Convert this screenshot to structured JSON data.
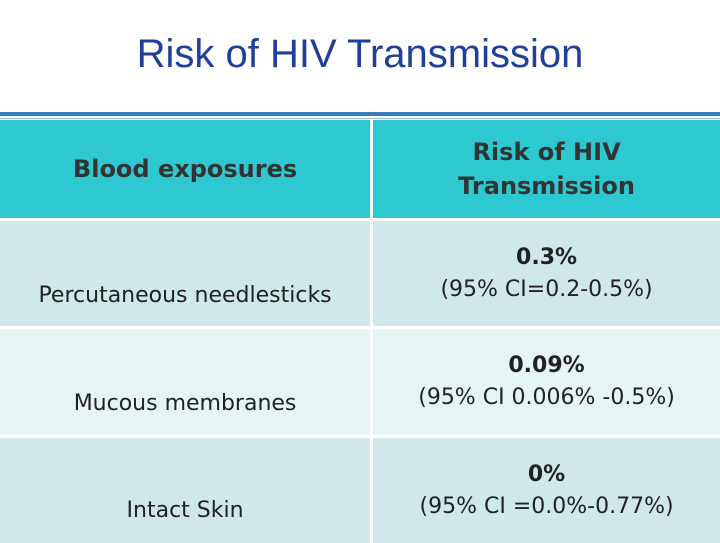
{
  "slide": {
    "title": "Risk of HIV Transmission"
  },
  "table": {
    "headers": [
      "Blood exposures",
      "Risk of HIV Transmission"
    ],
    "rows": [
      {
        "exposure": "Percutaneous needlesticks",
        "risk": "0.3%",
        "ci": "(95% CI=0.2-0.5%)"
      },
      {
        "exposure": "Mucous membranes",
        "risk": "0.09%",
        "ci": "(95% CI 0.006% -0.5%)"
      },
      {
        "exposure": "Intact Skin",
        "risk": "0%",
        "ci": "(95% CI =0.0%-0.77%)"
      }
    ]
  },
  "colors": {
    "title": "#1f3f9b",
    "header_bg": "#2ec8d0",
    "row_dark": "#cfe9ea",
    "row_light": "#e6f4f4"
  }
}
